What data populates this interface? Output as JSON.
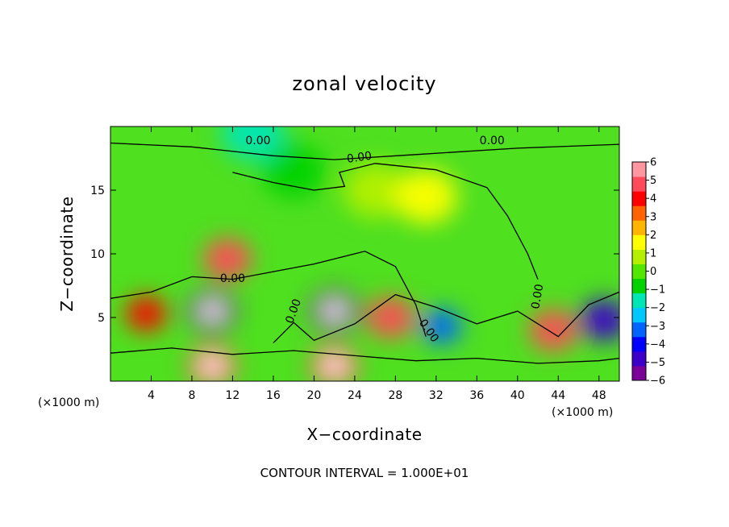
{
  "chart_data": {
    "type": "heatmap",
    "title": "zonal velocity",
    "xlabel": "X−coordinate",
    "ylabel": "Z−coordinate",
    "x_unit_label_left": "(×1000 m)",
    "x_unit_label_right": "(×1000 m)",
    "xlim": [
      0,
      50
    ],
    "ylim": [
      0,
      20
    ],
    "x_ticks": [
      4,
      8,
      12,
      16,
      20,
      24,
      28,
      32,
      36,
      40,
      44,
      48
    ],
    "x_tick_labels": [
      "4",
      "8",
      "12",
      "16",
      "20",
      "24",
      "28",
      "32",
      "36",
      "40",
      "44",
      "48"
    ],
    "y_ticks": [
      5,
      10,
      15
    ],
    "y_tick_labels": [
      "5",
      "10",
      "15"
    ],
    "colorbar": {
      "range": [
        -6,
        6
      ],
      "ticks": [
        6,
        5,
        4,
        3,
        2,
        1,
        0,
        -1,
        -2,
        -3,
        -4,
        -5,
        -6
      ],
      "tick_labels": [
        "6",
        "5",
        "4",
        "3",
        "2",
        "1",
        "0",
        "−1",
        "−2",
        "−3",
        "−4",
        "−5",
        "−6"
      ],
      "colors": [
        "#7b0099",
        "#3c00c8",
        "#0000ff",
        "#0064ff",
        "#00c8ff",
        "#00e6b4",
        "#00d200",
        "#50e600",
        "#b4f000",
        "#ffff00",
        "#ffb400",
        "#ff6400",
        "#ff0000",
        "#ff4b5a",
        "#ff96a0"
      ]
    },
    "contour_label": "0.00",
    "contour_interval_note": "CONTOUR INTERVAL = 1.000E+01",
    "features": [
      {
        "x": 10.0,
        "z": 5.5,
        "value": -6
      },
      {
        "x": 11.5,
        "z": 9.6,
        "value": 5
      },
      {
        "x": 22.0,
        "z": 5.5,
        "value": -6
      },
      {
        "x": 27.5,
        "z": 5.0,
        "value": 5
      },
      {
        "x": 3.5,
        "z": 5.3,
        "value": 4
      },
      {
        "x": 10.0,
        "z": 1.2,
        "value": 5
      },
      {
        "x": 22.0,
        "z": 1.2,
        "value": 5
      },
      {
        "x": 43.5,
        "z": 4.0,
        "value": 5
      },
      {
        "x": 48.5,
        "z": 4.8,
        "value": -5
      },
      {
        "x": 32.5,
        "z": 4.3,
        "value": -3
      },
      {
        "x": 26.0,
        "z": 15.0,
        "value": 1
      },
      {
        "x": 31.0,
        "z": 14.5,
        "value": 1.5
      },
      {
        "x": 18.0,
        "z": 16.5,
        "value": -1
      },
      {
        "x": 14.0,
        "z": 19.5,
        "value": -1.5
      }
    ]
  }
}
